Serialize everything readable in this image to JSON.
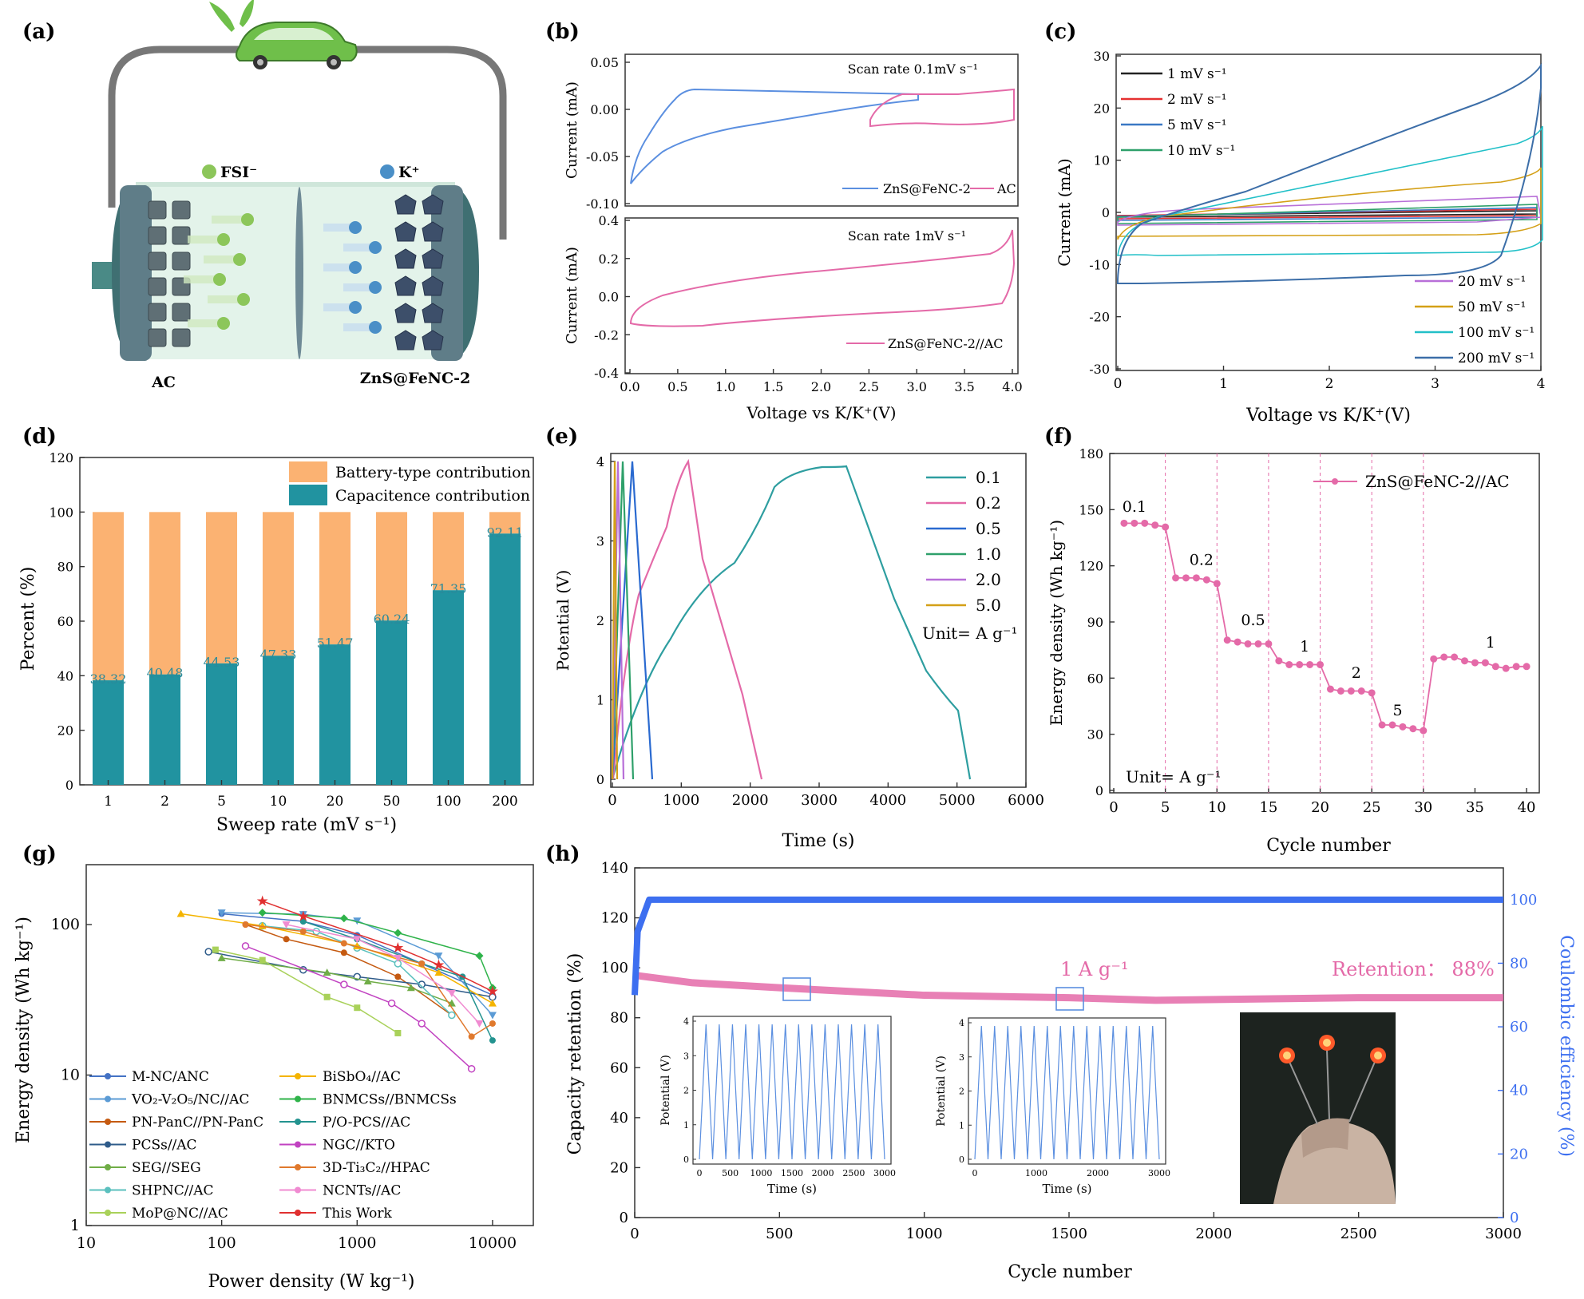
{
  "figure": {
    "panel_labels": [
      "(a)",
      "(b)",
      "(c)",
      "(d)",
      "(e)",
      "(f)",
      "(g)",
      "(h)"
    ]
  },
  "panel_a": {
    "left_label": "AC",
    "right_label": "ZnS@FeNC-2",
    "anion_label": "FSI⁻",
    "cation_label": "K⁺",
    "colors": {
      "anion": "#8cc65a",
      "cation": "#4a8fc7",
      "collector": "#556b78",
      "electrolyte": "#dff1e8",
      "body": "#4a8a86"
    }
  },
  "panel_b_top": {
    "annotation": "Scan rate 0.1mV s⁻¹",
    "ylabel": "Current (mA)",
    "yticks": [
      "0.05",
      "0.00",
      "-0.05",
      "-0.10"
    ],
    "legend": [
      "ZnS@FeNC-2",
      "AC"
    ]
  },
  "panel_b_bottom": {
    "annotation": "Scan rate 1mV s⁻¹",
    "ylabel": "Current (mA)",
    "yticks": [
      "0.4",
      "0.2",
      "0.0",
      "-0.2",
      "-0.4"
    ],
    "legend": [
      "ZnS@FeNC-2//AC"
    ],
    "xlabel": "Voltage vs K/K⁺(V)",
    "xticks": [
      "0.0",
      "0.5",
      "1.0",
      "1.5",
      "2.0",
      "2.5",
      "3.0",
      "3.5",
      "4.0"
    ]
  },
  "panel_c": {
    "ylabel": "Current (mA)",
    "xlabel": "Voltage vs K/K⁺(V)",
    "xticks": [
      "0",
      "1",
      "2",
      "3",
      "4"
    ],
    "yticks": [
      "30",
      "20",
      "10",
      "0",
      "-10",
      "-20",
      "-30"
    ],
    "legend_left": [
      "1 mV s⁻¹",
      "2 mV s⁻¹",
      "5 mV s⁻¹",
      "10 mV s⁻¹"
    ],
    "legend_right": [
      "20 mV s⁻¹",
      "50 mV s⁻¹",
      "100 mV s⁻¹",
      "200 mV s⁻¹"
    ]
  },
  "panel_e": {
    "ylabel": "Potential (V)",
    "xlabel": "Time (s)",
    "xticks": [
      "0",
      "1000",
      "2000",
      "3000",
      "4000",
      "5000",
      "6000"
    ],
    "yticks": [
      "4",
      "3",
      "2",
      "1",
      "0"
    ],
    "legend": [
      "0.1",
      "0.2",
      "0.5",
      "1.0",
      "2.0",
      "5.0"
    ],
    "unit": "Unit= A g⁻¹"
  },
  "panel_f": {
    "ylabel": "Energy density (Wh kg⁻¹)",
    "xlabel": "Cycle number",
    "xticks": [
      "0",
      "5",
      "10",
      "15",
      "20",
      "25",
      "30",
      "35",
      "40"
    ],
    "yticks": [
      "180",
      "150",
      "120",
      "90",
      "60",
      "30",
      "0"
    ],
    "legend": "ZnS@FeNC-2//AC",
    "unit": "Unit= A g⁻¹",
    "rate_labels": [
      "0.1",
      "0.2",
      "0.5",
      "1",
      "2",
      "5",
      "1"
    ]
  },
  "panel_g": {
    "ylabel": "Energy density (Wh kg⁻¹)",
    "xlabel": "Power density (W kg⁻¹)",
    "xticks": [
      "10",
      "100",
      "1000",
      "10000"
    ],
    "yticks": [
      "100",
      "10",
      "1"
    ],
    "legend_col1": [
      "M-NC/ANC",
      "VO₂-V₂O₅/NC//AC",
      "PN-PanC//PN-PanC",
      "PCSs//AC",
      "SEG//SEG",
      "SHPNC//AC",
      "MoP@NC//AC"
    ],
    "legend_col2": [
      "BiSbO₄//AC",
      "BNMCSs//BNMCSs",
      "P/O-PCS//AC",
      "NGC//KTO",
      "3D-Ti₃C₂//HPAC",
      "NCNTs//AC",
      "This Work"
    ]
  },
  "panel_h": {
    "ylabel_left": "Capacity retention (%)",
    "ylabel_right": "Coulombic efficiency (%)",
    "xlabel": "Cycle number",
    "xticks": [
      "0",
      "500",
      "1000",
      "1500",
      "2000",
      "2500",
      "3000"
    ],
    "yticks_left": [
      "140",
      "120",
      "100",
      "80",
      "60",
      "40",
      "20",
      "0"
    ],
    "yticks_right": [
      "100",
      "80",
      "60",
      "40",
      "20",
      "0"
    ],
    "rate_annotation": "1 A g⁻¹",
    "retention_annotation": "Retention： 88%",
    "inset1": {
      "ylabel": "Potential (V)",
      "xlabel": "Time (s)",
      "xticks": [
        "0",
        "500",
        "1000",
        "1500",
        "2000",
        "2500",
        "3000"
      ],
      "yticks": [
        "4",
        "3",
        "2",
        "1",
        "0"
      ]
    },
    "inset2": {
      "ylabel": "Potential (V)",
      "xlabel": "Time (s)",
      "xticks": [
        "0",
        "1000",
        "2000",
        "3000"
      ],
      "yticks": [
        "4",
        "3",
        "2",
        "1",
        "0"
      ]
    }
  },
  "chart_data": [
    {
      "id": "d",
      "type": "bar",
      "categories": [
        "1",
        "2",
        "5",
        "10",
        "20",
        "50",
        "100",
        "200"
      ],
      "series": [
        {
          "name": "Capacitence contribution",
          "values": [
            38.32,
            40.48,
            44.53,
            47.33,
            51.47,
            60.24,
            71.35,
            92.11
          ],
          "color": "#2193a0"
        },
        {
          "name": "Battery-type contribution",
          "values": [
            61.68,
            59.52,
            55.47,
            52.67,
            48.53,
            39.76,
            28.65,
            7.89
          ],
          "color": "#fbb272"
        }
      ],
      "data_labels": [
        "38.32",
        "40.48",
        "44.53",
        "47.33",
        "51.47",
        "60.24",
        "71.35",
        "92.11"
      ],
      "xlabel": "Sweep rate (mV s⁻¹)",
      "ylabel": "Percent (%)",
      "yticks": [
        "0",
        "20",
        "40",
        "60",
        "80",
        "100",
        "120"
      ],
      "ylim": [
        0,
        120
      ],
      "legend_position": "top-right"
    },
    {
      "id": "f",
      "type": "scatter",
      "series": [
        {
          "name": "ZnS@FeNC-2//AC",
          "color": "#e46aa8",
          "x": [
            1,
            2,
            3,
            4,
            5,
            6,
            7,
            8,
            9,
            10,
            11,
            12,
            13,
            14,
            15,
            16,
            17,
            18,
            19,
            20,
            21,
            22,
            23,
            24,
            25,
            26,
            27,
            28,
            29,
            30,
            31,
            32,
            33,
            34,
            35,
            36,
            37,
            38,
            39,
            40
          ],
          "y": [
            143,
            143,
            143,
            142,
            141,
            114,
            114,
            114,
            113,
            111,
            81,
            80,
            79,
            79,
            79,
            70,
            68,
            68,
            68,
            68,
            55,
            54,
            54,
            54,
            53,
            36,
            36,
            35,
            34,
            33,
            71,
            72,
            72,
            70,
            69,
            69,
            67,
            66,
            67,
            67
          ]
        }
      ],
      "xlim": [
        0,
        41
      ],
      "ylim": [
        0,
        180
      ],
      "dividers": [
        5,
        10,
        15,
        20,
        25,
        30
      ]
    },
    {
      "id": "g",
      "type": "scatter",
      "log_x": true,
      "log_y": true,
      "xlim": [
        10,
        20000
      ],
      "ylim": [
        1,
        250
      ],
      "series": [
        {
          "name": "M-NC/ANC",
          "color": "#4472c4",
          "marker": "circle",
          "x": [
            100,
            400,
            1000,
            3000,
            10000
          ],
          "y": [
            118,
            105,
            85,
            55,
            34
          ]
        },
        {
          "name": "VO₂-V₂O₅/NC//AC",
          "color": "#5b9bd5",
          "marker": "tri-down",
          "x": [
            100,
            400,
            1000,
            4000,
            10000
          ],
          "y": [
            120,
            117,
            106,
            62,
            25
          ]
        },
        {
          "name": "PN-PanC//PN-PanC",
          "color": "#c55a11",
          "marker": "circle",
          "x": [
            150,
            300,
            800,
            2000,
            5000
          ],
          "y": [
            100,
            80,
            65,
            45,
            25
          ]
        },
        {
          "name": "PCSs//AC",
          "color": "#2e5b8a",
          "marker": "circle-open",
          "x": [
            80,
            400,
            1000,
            3000,
            10000
          ],
          "y": [
            66,
            50,
            45,
            40,
            33
          ]
        },
        {
          "name": "SEG//SEG",
          "color": "#70ad47",
          "marker": "triangle",
          "x": [
            100,
            600,
            1200,
            2500,
            5000
          ],
          "y": [
            60,
            48,
            42,
            38,
            30
          ]
        },
        {
          "name": "SHPNC//AC",
          "color": "#5bc0be",
          "marker": "circle-open",
          "x": [
            200,
            500,
            1000,
            2000,
            5000
          ],
          "y": [
            98,
            90,
            70,
            55,
            25
          ]
        },
        {
          "name": "MoP@NC//AC",
          "color": "#a9d15a",
          "marker": "square",
          "x": [
            90,
            200,
            600,
            1000,
            2000
          ],
          "y": [
            68,
            58,
            33,
            28,
            19
          ]
        },
        {
          "name": "BiSbO₄//AC",
          "color": "#f4b400",
          "marker": "triangle",
          "x": [
            50,
            200,
            1000,
            4000,
            10000
          ],
          "y": [
            118,
            98,
            72,
            48,
            30
          ]
        },
        {
          "name": "BNMCSs//BNMCSs",
          "color": "#2fb34a",
          "marker": "diamond",
          "x": [
            200,
            800,
            2000,
            8000,
            10000
          ],
          "y": [
            120,
            110,
            88,
            62,
            38
          ]
        },
        {
          "name": "P/O-PCS//AC",
          "color": "#23938f",
          "marker": "circle",
          "x": [
            400,
            1000,
            3000,
            6000,
            10000
          ],
          "y": [
            105,
            80,
            55,
            45,
            17
          ]
        },
        {
          "name": "NGC//KTO",
          "color": "#c142c1",
          "marker": "circle-open",
          "x": [
            150,
            800,
            1800,
            3000,
            7000
          ],
          "y": [
            72,
            40,
            30,
            22,
            11
          ]
        },
        {
          "name": "3D-Ti₃C₂//HPAC",
          "color": "#e0792d",
          "marker": "half-circle",
          "x": [
            150,
            400,
            800,
            3000,
            7000,
            10000
          ],
          "y": [
            100,
            90,
            75,
            55,
            18,
            22
          ]
        },
        {
          "name": "NCNTs//AC",
          "color": "#f08bd1",
          "marker": "tri-down",
          "x": [
            300,
            1000,
            2000,
            5000,
            8000
          ],
          "y": [
            100,
            80,
            60,
            35,
            22
          ]
        },
        {
          "name": "This Work",
          "color": "#e03030",
          "marker": "star",
          "x": [
            200,
            400,
            2000,
            4000,
            10000
          ],
          "y": [
            143,
            114,
            70,
            54,
            36
          ]
        }
      ]
    },
    {
      "id": "h",
      "type": "line",
      "series": [
        {
          "name": "Capacity retention",
          "color": "#e46aa8",
          "x": [
            0,
            200,
            500,
            1000,
            1500,
            1800,
            2500,
            3000
          ],
          "y": [
            97,
            94,
            92,
            89,
            88,
            87,
            88,
            88
          ]
        },
        {
          "name": "Coulombic efficiency",
          "color": "#3d6ff0",
          "axis": "right",
          "x": [
            0,
            10,
            50,
            500,
            3000
          ],
          "y": [
            70,
            90,
            100,
            100,
            100
          ]
        }
      ],
      "xlim": [
        0,
        3000
      ],
      "ylim": [
        0,
        140
      ],
      "ylim_right": [
        0,
        110
      ]
    }
  ]
}
